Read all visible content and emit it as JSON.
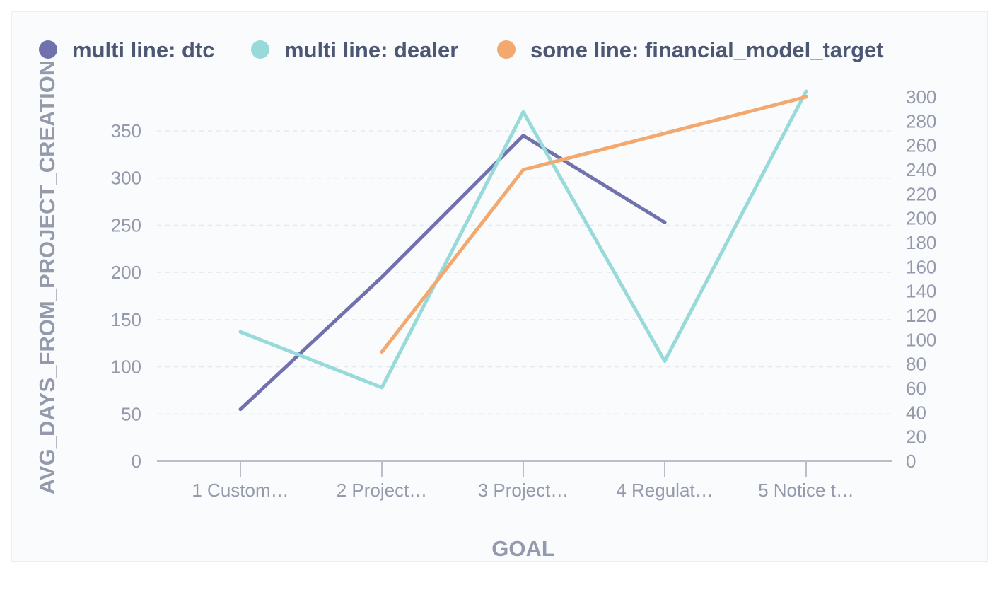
{
  "chart_data": {
    "type": "line",
    "xlabel": "GOAL",
    "ylabel": "AVG_DAYS_FROM_PROJECT_CREATION",
    "categories": [
      "1 Custom…",
      "2 Project…",
      "3 Project…",
      "4 Regulat…",
      "5 Notice t…"
    ],
    "y_left": {
      "range": [
        0,
        350
      ],
      "ticks": [
        0,
        50,
        100,
        150,
        200,
        250,
        300,
        350
      ]
    },
    "y_right": {
      "range": [
        0,
        300
      ],
      "ticks": [
        0,
        20,
        40,
        60,
        80,
        100,
        120,
        140,
        160,
        180,
        200,
        220,
        240,
        260,
        280,
        300
      ]
    },
    "grid": true,
    "legend_position": "top",
    "series": [
      {
        "name": "multi line: dtc",
        "color": "#7172ad",
        "axis": "left",
        "values": [
          55,
          195,
          345,
          253,
          null
        ]
      },
      {
        "name": "multi line: dealer",
        "color": "#98d9d9",
        "axis": "left",
        "values": [
          137,
          78,
          370,
          106,
          392
        ]
      },
      {
        "name": "some line: financial_model_target",
        "color": "#f2a86f",
        "axis": "right",
        "values": [
          null,
          90,
          240,
          null,
          300
        ]
      }
    ]
  }
}
